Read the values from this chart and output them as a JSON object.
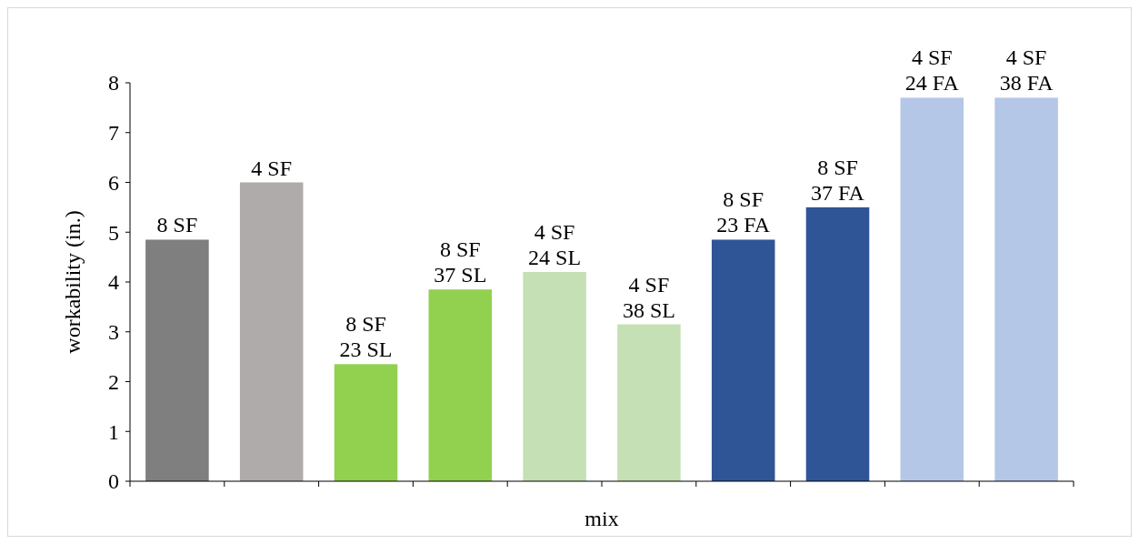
{
  "chart_data": {
    "type": "bar",
    "xlabel": "mix",
    "ylabel": "workability (in.)",
    "categories": [
      "8 SF",
      "4 SF",
      "8 SF 23 SL",
      "8 SF 37 SL",
      "4 SF 24 SL",
      "4 SF 38 SL",
      "8 SF 23 FA",
      "8 SF 37 FA",
      "4 SF 24 FA",
      "4 SF 38 FA"
    ],
    "values": [
      4.85,
      6.0,
      2.35,
      3.85,
      4.2,
      3.15,
      4.85,
      5.5,
      7.7,
      7.7
    ],
    "colors": [
      "#7f7f7f",
      "#afabab",
      "#92d050",
      "#92d050",
      "#c5e0b4",
      "#c5e0b4",
      "#2f5597",
      "#2f5597",
      "#b4c7e7",
      "#b4c7e7"
    ],
    "ylim": [
      0,
      8
    ],
    "yticks": [
      0,
      1,
      2,
      3,
      4,
      5,
      6,
      7,
      8
    ]
  }
}
